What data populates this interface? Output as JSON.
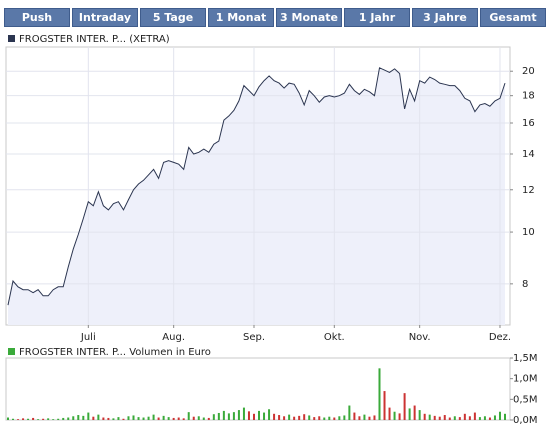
{
  "tabs": [
    "Push",
    "Intraday",
    "5 Tage",
    "1 Monat",
    "3 Monate",
    "1 Jahr",
    "3 Jahre",
    "Gesamt"
  ],
  "chart_data": [
    {
      "type": "line",
      "title": "FROGSTER INTER. P... (XETRA)",
      "color": "#2b3550",
      "fill": "#eef0fa",
      "log": true,
      "grid": true,
      "categories": [
        null,
        null,
        null,
        null,
        null,
        null,
        null,
        null,
        null,
        null,
        null,
        null,
        null,
        null,
        null,
        null,
        "Juli",
        null,
        null,
        null,
        null,
        null,
        null,
        null,
        null,
        null,
        null,
        null,
        null,
        null,
        null,
        null,
        null,
        "Aug.",
        null,
        null,
        null,
        null,
        null,
        null,
        null,
        null,
        null,
        null,
        null,
        null,
        null,
        null,
        null,
        "Sep.",
        null,
        null,
        null,
        null,
        null,
        null,
        null,
        null,
        null,
        null,
        null,
        null,
        null,
        null,
        null,
        "Okt.",
        null,
        null,
        null,
        null,
        null,
        null,
        null,
        null,
        null,
        null,
        null,
        null,
        null,
        null,
        null,
        null,
        "Nov.",
        null,
        null,
        null,
        null,
        null,
        null,
        null,
        null,
        null,
        null,
        null,
        null,
        null,
        null,
        null,
        "Dez.",
        null
      ],
      "values": [
        7.3,
        8.1,
        7.9,
        7.8,
        7.8,
        7.7,
        7.8,
        7.6,
        7.6,
        7.8,
        7.9,
        7.9,
        8.6,
        9.3,
        9.9,
        10.6,
        11.4,
        11.2,
        11.9,
        11.2,
        11.0,
        11.3,
        11.4,
        11.0,
        11.5,
        12.0,
        12.3,
        12.5,
        12.8,
        13.1,
        12.6,
        13.5,
        13.6,
        13.5,
        13.4,
        13.1,
        14.4,
        14.0,
        14.1,
        14.3,
        14.1,
        14.6,
        14.8,
        16.2,
        16.5,
        16.9,
        17.6,
        18.8,
        18.4,
        18.0,
        18.7,
        19.2,
        19.6,
        19.2,
        19.0,
        18.6,
        19.0,
        18.9,
        18.2,
        17.3,
        18.4,
        18.0,
        17.5,
        17.9,
        18.0,
        17.9,
        18.0,
        18.2,
        18.9,
        18.4,
        18.1,
        18.5,
        18.3,
        18.0,
        20.3,
        20.1,
        19.9,
        20.2,
        19.8,
        17.0,
        18.5,
        17.6,
        19.2,
        19.0,
        19.5,
        19.3,
        19.0,
        18.9,
        18.8,
        18.8,
        18.4,
        17.8,
        17.6,
        16.8,
        17.3,
        17.4,
        17.2,
        17.6,
        17.8,
        19.0
      ],
      "ylim": [
        6.7,
        22.2
      ],
      "yticks": [
        8,
        10,
        12,
        14,
        16,
        18,
        20
      ]
    },
    {
      "type": "bar",
      "title": "FROGSTER INTER. P... Volumen in Euro",
      "colors": {
        "up": "#3aaa3a",
        "down": "#cc3333"
      },
      "legend_color": "#3aaa3a",
      "values": [
        60000,
        30000,
        20000,
        40000,
        30000,
        50000,
        20000,
        30000,
        40000,
        20000,
        30000,
        50000,
        60000,
        90000,
        120000,
        100000,
        180000,
        80000,
        130000,
        60000,
        50000,
        40000,
        70000,
        30000,
        90000,
        110000,
        70000,
        60000,
        80000,
        130000,
        60000,
        100000,
        70000,
        50000,
        60000,
        40000,
        190000,
        80000,
        90000,
        60000,
        50000,
        140000,
        170000,
        220000,
        160000,
        190000,
        240000,
        300000,
        210000,
        150000,
        220000,
        180000,
        260000,
        150000,
        120000,
        90000,
        130000,
        80000,
        100000,
        140000,
        110000,
        70000,
        90000,
        60000,
        80000,
        60000,
        90000,
        110000,
        350000,
        180000,
        90000,
        130000,
        80000,
        110000,
        1250000,
        700000,
        300000,
        200000,
        160000,
        650000,
        280000,
        350000,
        240000,
        150000,
        130000,
        100000,
        80000,
        120000,
        60000,
        90000,
        70000,
        150000,
        90000,
        180000,
        70000,
        90000,
        60000,
        110000,
        200000,
        150000
      ],
      "ylim": [
        0,
        1500000
      ],
      "yticks": [
        {
          "value": 0,
          "label": "0,0M"
        },
        {
          "value": 500000,
          "label": "0,5M"
        },
        {
          "value": 1000000,
          "label": "1,0M"
        },
        {
          "value": 1500000,
          "label": "1,5M"
        }
      ]
    }
  ]
}
